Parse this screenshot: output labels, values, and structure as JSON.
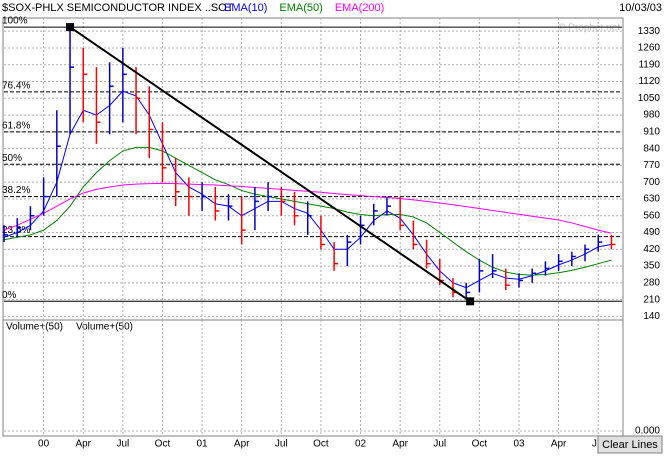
{
  "chart_data": {
    "type": "hlc",
    "title": "$SOX-PHLX SEMICONDUCTOR INDEX ..SOT",
    "date": "10/03/03",
    "watermark": "© Prophet.net",
    "x": [
      -3,
      -2,
      -1,
      0,
      1,
      2,
      3,
      4,
      5,
      6,
      7,
      8,
      9,
      10,
      11,
      12,
      13,
      14,
      15,
      16,
      17,
      18,
      19,
      20,
      21,
      22,
      23,
      24,
      25,
      26,
      27,
      28,
      29,
      30,
      31,
      32,
      33,
      34,
      35,
      36,
      37,
      38,
      39,
      40,
      41,
      42,
      43
    ],
    "xlim": [
      -3,
      43.8
    ],
    "xticks": [
      {
        "value": 0,
        "label": "00"
      },
      {
        "value": 3,
        "label": "Apr"
      },
      {
        "value": 6,
        "label": "Jul"
      },
      {
        "value": 9,
        "label": "Oct"
      },
      {
        "value": 12,
        "label": "01"
      },
      {
        "value": 15,
        "label": "Apr"
      },
      {
        "value": 18,
        "label": "Jul"
      },
      {
        "value": 21,
        "label": "Oct"
      },
      {
        "value": 24,
        "label": "02"
      },
      {
        "value": 27,
        "label": "Apr"
      },
      {
        "value": 30,
        "label": "Jul"
      },
      {
        "value": 33,
        "label": "Oct"
      },
      {
        "value": 36,
        "label": "03"
      },
      {
        "value": 39,
        "label": "Apr"
      },
      {
        "value": 42,
        "label": "Jul"
      }
    ],
    "price": {
      "up_color": "#0000cc",
      "down_color": "#ff0000",
      "high": [
        520,
        550,
        600,
        720,
        1000,
        1340,
        1260,
        1180,
        1200,
        1260,
        1180,
        1100,
        950,
        800,
        720,
        700,
        680,
        650,
        640,
        680,
        700,
        680,
        660,
        620,
        560,
        450,
        480,
        560,
        610,
        640,
        640,
        540,
        460,
        380,
        300,
        280,
        380,
        400,
        340,
        320,
        340,
        370,
        400,
        410,
        440,
        480,
        480
      ],
      "low": [
        450,
        470,
        500,
        560,
        640,
        900,
        950,
        860,
        900,
        950,
        900,
        800,
        700,
        600,
        560,
        580,
        540,
        540,
        440,
        500,
        580,
        560,
        520,
        480,
        420,
        330,
        350,
        440,
        520,
        560,
        500,
        420,
        340,
        270,
        220,
        210,
        240,
        300,
        250,
        260,
        280,
        310,
        330,
        350,
        370,
        410,
        420
      ],
      "close": [
        480,
        510,
        560,
        640,
        850,
        1180,
        1150,
        950,
        1100,
        1150,
        1050,
        920,
        760,
        660,
        640,
        640,
        580,
        600,
        500,
        620,
        640,
        620,
        560,
        560,
        440,
        360,
        450,
        520,
        580,
        600,
        520,
        440,
        360,
        290,
        240,
        240,
        330,
        330,
        270,
        290,
        320,
        340,
        370,
        390,
        420,
        450,
        440
      ]
    },
    "series": [
      {
        "name": "EMA(10)",
        "color": "#0000ff",
        "values": [
          470,
          490,
          520,
          580,
          700,
          900,
          1000,
          980,
          1020,
          1080,
          1060,
          980,
          860,
          740,
          680,
          650,
          610,
          600,
          560,
          590,
          620,
          620,
          590,
          570,
          500,
          420,
          420,
          470,
          540,
          580,
          550,
          480,
          400,
          330,
          280,
          260,
          290,
          320,
          300,
          295,
          310,
          330,
          355,
          375,
          400,
          430,
          440
        ]
      },
      {
        "name": "EMA(50)",
        "color": "#008000",
        "values": [
          460,
          470,
          480,
          500,
          540,
          600,
          680,
          740,
          790,
          830,
          845,
          845,
          830,
          800,
          770,
          740,
          710,
          690,
          665,
          650,
          640,
          630,
          620,
          610,
          600,
          590,
          575,
          565,
          560,
          565,
          565,
          555,
          530,
          490,
          450,
          410,
          375,
          345,
          325,
          315,
          312,
          315,
          322,
          332,
          345,
          360,
          375
        ]
      },
      {
        "name": "EMA(200)",
        "color": "#ff00ff",
        "values": [
          500,
          520,
          545,
          570,
          600,
          630,
          655,
          670,
          680,
          688,
          692,
          694,
          695,
          694,
          692,
          690,
          688,
          685,
          682,
          678,
          674,
          670,
          666,
          662,
          658,
          653,
          648,
          644,
          640,
          636,
          632,
          626,
          620,
          613,
          606,
          598,
          590,
          582,
          574,
          566,
          558,
          550,
          542,
          530,
          515,
          500,
          487
        ]
      }
    ],
    "ylim": [
      125,
      1385
    ],
    "yticks": [
      140,
      210,
      280,
      350,
      420,
      490,
      560,
      630,
      700,
      770,
      840,
      910,
      980,
      1050,
      1120,
      1190,
      1260,
      1330
    ],
    "grid": true,
    "fib_levels": [
      {
        "value": 1347,
        "label": "100%"
      },
      {
        "value": 1077,
        "label": "76.4%"
      },
      {
        "value": 910,
        "label": "61.8%"
      },
      {
        "value": 775,
        "label": "50%"
      },
      {
        "value": 640,
        "label": "38.2%"
      },
      {
        "value": 473,
        "label": "23.6%"
      },
      {
        "value": 203,
        "label": "0%"
      }
    ],
    "trend_line": {
      "x": [
        2,
        32.3
      ],
      "y": [
        1347,
        203
      ]
    },
    "volume_panel": {
      "labels": [
        "Volume+(50)",
        "Volume+(50)"
      ],
      "ylim": [
        0,
        1
      ],
      "yticks": [
        {
          "value": 0,
          "label": "0.000"
        }
      ]
    },
    "button": "Clear Lines"
  }
}
